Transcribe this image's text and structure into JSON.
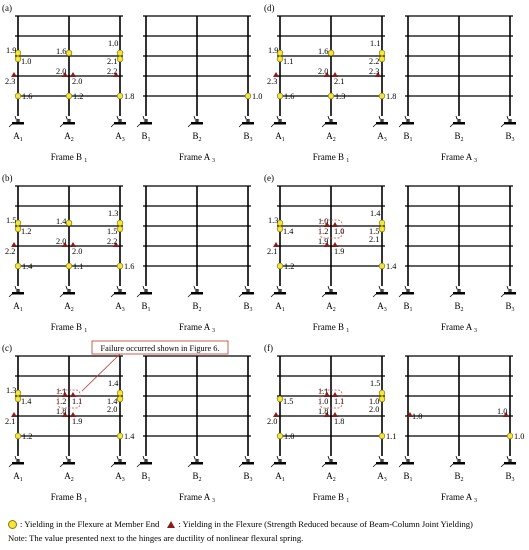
{
  "panels": [
    {
      "label": "(a)",
      "frameB_name": "Frame B",
      "frameB_sub": "1",
      "frameA_name": "Frame A",
      "frameA_sub": "3",
      "left_labels": [
        [
          "A",
          "1"
        ],
        [
          "A",
          "2"
        ],
        [
          "A",
          "3"
        ]
      ],
      "right_labels": [
        [
          "B",
          "1"
        ],
        [
          "B",
          "2"
        ],
        [
          "B",
          "3"
        ]
      ],
      "left_hinges": [
        {
          "col": 0,
          "floor": 2,
          "kind": "circle",
          "value": "1.9",
          "side": "left"
        },
        {
          "col": 0,
          "floor": 2,
          "kind": "circle",
          "value": "1.0",
          "side": "br"
        },
        {
          "col": 1,
          "floor": 2,
          "kind": "circle",
          "value": "1.6",
          "side": "tl"
        },
        {
          "col": 1,
          "floor": 2,
          "kind": "circle",
          "value": "",
          "side": ""
        },
        {
          "col": 2,
          "floor": 2,
          "kind": "circle",
          "value": "1.0",
          "side": "tl2"
        },
        {
          "col": 2,
          "floor": 2,
          "kind": "circle",
          "value": "2.1",
          "side": "bl"
        },
        {
          "col": 1,
          "floor": 1,
          "kind": "tri",
          "value": "2.0",
          "side": "tl"
        },
        {
          "col": 2,
          "floor": 1,
          "kind": "tri",
          "value": "2.2",
          "side": "tl"
        },
        {
          "col": 0,
          "floor": 1,
          "kind": "tri",
          "value": "2.3",
          "side": "bl"
        },
        {
          "col": 1,
          "floor": 1,
          "kind": "tri2",
          "value": "2.0",
          "side": "br"
        },
        {
          "col": 0,
          "floor": 0,
          "kind": "circle",
          "value": "1.6",
          "side": "r"
        },
        {
          "col": 1,
          "floor": 0,
          "kind": "circle",
          "value": "1.2",
          "side": "r"
        },
        {
          "col": 2,
          "floor": 0,
          "kind": "circle",
          "value": "1.8",
          "side": "r"
        }
      ],
      "right_hinges": [
        {
          "col": 2,
          "floor": 0,
          "kind": "circle",
          "value": "1.0",
          "side": "r"
        }
      ]
    },
    {
      "label": "(b)",
      "frameB_name": "Frame B",
      "frameB_sub": "1",
      "frameA_name": "Frame A",
      "frameA_sub": "3",
      "left_labels": [
        [
          "A",
          "1"
        ],
        [
          "A",
          "2"
        ],
        [
          "A",
          "3"
        ]
      ],
      "right_labels": [
        [
          "B",
          "1"
        ],
        [
          "B",
          "2"
        ],
        [
          "B",
          "3"
        ]
      ],
      "left_hinges": [
        {
          "col": 0,
          "floor": 2,
          "kind": "circle",
          "value": "1.5",
          "side": "left"
        },
        {
          "col": 0,
          "floor": 2,
          "kind": "circle",
          "value": "1.2",
          "side": "br"
        },
        {
          "col": 1,
          "floor": 2,
          "kind": "circle",
          "value": "1.4",
          "side": "tl"
        },
        {
          "col": 1,
          "floor": 2,
          "kind": "circle",
          "value": "",
          "side": ""
        },
        {
          "col": 2,
          "floor": 2,
          "kind": "circle",
          "value": "1.3",
          "side": "tl2"
        },
        {
          "col": 2,
          "floor": 2,
          "kind": "circle",
          "value": "1.5",
          "side": "bl"
        },
        {
          "col": 1,
          "floor": 1,
          "kind": "tri",
          "value": "2.0",
          "side": "tl"
        },
        {
          "col": 2,
          "floor": 1,
          "kind": "tri",
          "value": "2.2",
          "side": "tl"
        },
        {
          "col": 0,
          "floor": 1,
          "kind": "tri",
          "value": "2.2",
          "side": "bl"
        },
        {
          "col": 1,
          "floor": 1,
          "kind": "tri2",
          "value": "2.0",
          "side": "br"
        },
        {
          "col": 0,
          "floor": 0,
          "kind": "circle",
          "value": "1.4",
          "side": "r"
        },
        {
          "col": 1,
          "floor": 0,
          "kind": "circle",
          "value": "1.1",
          "side": "r"
        },
        {
          "col": 2,
          "floor": 0,
          "kind": "circle",
          "value": "1.6",
          "side": "r"
        }
      ],
      "right_hinges": []
    },
    {
      "label": "(c)",
      "frameB_name": "Frame B",
      "frameB_sub": "1",
      "frameA_name": "Frame A",
      "frameA_sub": "3",
      "left_labels": [
        [
          "A",
          "1"
        ],
        [
          "A",
          "2"
        ],
        [
          "A",
          "3"
        ]
      ],
      "right_labels": [
        [
          "B",
          "1"
        ],
        [
          "B",
          "2"
        ],
        [
          "B",
          "3"
        ]
      ],
      "left_hinges": [
        {
          "col": 0,
          "floor": 2,
          "kind": "circle",
          "value": "1.3",
          "side": "left"
        },
        {
          "col": 0,
          "floor": 2,
          "kind": "circle",
          "value": "1.4",
          "side": "br"
        },
        {
          "col": 1,
          "floor": 2,
          "kind": "tri",
          "value": "1.1",
          "side": "tl"
        },
        {
          "col": 1,
          "floor": 2,
          "kind": "tri2",
          "value": "1.2",
          "side": "bl"
        },
        {
          "col": 1,
          "floor": 2,
          "kind": "tri",
          "value": "1.1",
          "side": "br"
        },
        {
          "col": 2,
          "floor": 2,
          "kind": "circle",
          "value": "1.4",
          "side": "tl2"
        },
        {
          "col": 2,
          "floor": 2,
          "kind": "circle",
          "value": "1.4",
          "side": "bl"
        },
        {
          "col": 2,
          "floor": 2,
          "kind": "circle",
          "value": "2.0",
          "side": "bl2"
        },
        {
          "col": 0,
          "floor": 1,
          "kind": "tri",
          "value": "2.1",
          "side": "bl"
        },
        {
          "col": 1,
          "floor": 1,
          "kind": "tri",
          "value": "1.8",
          "side": "tl"
        },
        {
          "col": 1,
          "floor": 1,
          "kind": "tri2",
          "value": "1.9",
          "side": "br"
        },
        {
          "col": 0,
          "floor": 0,
          "kind": "circle",
          "value": "1.2",
          "side": "r"
        },
        {
          "col": 2,
          "floor": 0,
          "kind": "circle",
          "value": "1.4",
          "side": "r"
        }
      ],
      "right_hinges": [],
      "dashed_box": true
    },
    {
      "label": "(d)",
      "frameB_name": "Frame B",
      "frameB_sub": "1",
      "frameA_name": "Frame A",
      "frameA_sub": "3",
      "left_labels": [
        [
          "A",
          "1"
        ],
        [
          "A",
          "2"
        ],
        [
          "A",
          "3"
        ]
      ],
      "right_labels": [
        [
          "B",
          "1"
        ],
        [
          "B",
          "2"
        ],
        [
          "B",
          "3"
        ]
      ],
      "left_hinges": [
        {
          "col": 0,
          "floor": 2,
          "kind": "circle",
          "value": "1.9",
          "side": "left"
        },
        {
          "col": 0,
          "floor": 2,
          "kind": "circle",
          "value": "1.1",
          "side": "br"
        },
        {
          "col": 1,
          "floor": 2,
          "kind": "circle",
          "value": "1.6",
          "side": "tl"
        },
        {
          "col": 1,
          "floor": 2,
          "kind": "circle",
          "value": "",
          "side": ""
        },
        {
          "col": 2,
          "floor": 2,
          "kind": "circle",
          "value": "1.1",
          "side": "tl2"
        },
        {
          "col": 2,
          "floor": 2,
          "kind": "circle",
          "value": "2.2",
          "side": "bl"
        },
        {
          "col": 1,
          "floor": 1,
          "kind": "tri",
          "value": "2.0",
          "side": "tl"
        },
        {
          "col": 2,
          "floor": 1,
          "kind": "tri",
          "value": "2.3",
          "side": "tl"
        },
        {
          "col": 0,
          "floor": 1,
          "kind": "tri",
          "value": "2.3",
          "side": "bl"
        },
        {
          "col": 1,
          "floor": 1,
          "kind": "tri2",
          "value": "2.1",
          "side": "br"
        },
        {
          "col": 0,
          "floor": 0,
          "kind": "circle",
          "value": "1.6",
          "side": "r"
        },
        {
          "col": 1,
          "floor": 0,
          "kind": "circle",
          "value": "1.3",
          "side": "r"
        },
        {
          "col": 2,
          "floor": 0,
          "kind": "circle",
          "value": "1.8",
          "side": "r"
        }
      ],
      "right_hinges": []
    },
    {
      "label": "(e)",
      "frameB_name": "Frame B",
      "frameB_sub": "1",
      "frameA_name": "Frame A",
      "frameA_sub": "3",
      "left_labels": [
        [
          "A",
          "1"
        ],
        [
          "A",
          "2"
        ],
        [
          "A",
          "3"
        ]
      ],
      "right_labels": [
        [
          "B",
          "1"
        ],
        [
          "B",
          "2"
        ],
        [
          "B",
          "3"
        ]
      ],
      "left_hinges": [
        {
          "col": 0,
          "floor": 2,
          "kind": "circle",
          "value": "1.3",
          "side": "left"
        },
        {
          "col": 0,
          "floor": 2,
          "kind": "circle",
          "value": "1.4",
          "side": "br"
        },
        {
          "col": 1,
          "floor": 2,
          "kind": "tri",
          "value": "1.0",
          "side": "tl"
        },
        {
          "col": 1,
          "floor": 2,
          "kind": "tri2",
          "value": "1.2",
          "side": "bl"
        },
        {
          "col": 1,
          "floor": 2,
          "kind": "tri",
          "value": "1.0",
          "side": "br"
        },
        {
          "col": 2,
          "floor": 2,
          "kind": "circle",
          "value": "1.4",
          "side": "tl2"
        },
        {
          "col": 2,
          "floor": 2,
          "kind": "circle",
          "value": "1.5",
          "side": "bl"
        },
        {
          "col": 2,
          "floor": 2,
          "kind": "circle",
          "value": "2.1",
          "side": "bl2"
        },
        {
          "col": 0,
          "floor": 1,
          "kind": "tri",
          "value": "2.1",
          "side": "bl"
        },
        {
          "col": 1,
          "floor": 1,
          "kind": "tri",
          "value": "1.9",
          "side": "tl"
        },
        {
          "col": 1,
          "floor": 1,
          "kind": "tri2",
          "value": "1.9",
          "side": "br"
        },
        {
          "col": 0,
          "floor": 0,
          "kind": "circle",
          "value": "1.2",
          "side": "r"
        },
        {
          "col": 2,
          "floor": 0,
          "kind": "circle",
          "value": "1.4",
          "side": "r"
        }
      ],
      "right_hinges": [],
      "dashed_box": true
    },
    {
      "label": "(f)",
      "frameB_name": "Frame B",
      "frameB_sub": "1",
      "frameA_name": "Frame A",
      "frameA_sub": "3",
      "left_labels": [
        [
          "A",
          "1"
        ],
        [
          "A",
          "2"
        ],
        [
          "A",
          "3"
        ]
      ],
      "right_labels": [
        [
          "B",
          "1"
        ],
        [
          "B",
          "2"
        ],
        [
          "B",
          "3"
        ]
      ],
      "left_hinges": [
        {
          "col": 0,
          "floor": 2,
          "kind": "circle",
          "value": "1.5",
          "side": "br"
        },
        {
          "col": 1,
          "floor": 2,
          "kind": "tri",
          "value": "1.1",
          "side": "tl"
        },
        {
          "col": 1,
          "floor": 2,
          "kind": "tri2",
          "value": "1.0",
          "side": "bl"
        },
        {
          "col": 1,
          "floor": 2,
          "kind": "tri",
          "value": "1.1",
          "side": "br"
        },
        {
          "col": 2,
          "floor": 2,
          "kind": "circle",
          "value": "1.5",
          "side": "tl2"
        },
        {
          "col": 2,
          "floor": 2,
          "kind": "circle",
          "value": "1.0",
          "side": "bl"
        },
        {
          "col": 2,
          "floor": 2,
          "kind": "circle",
          "value": "2.0",
          "side": "bl2"
        },
        {
          "col": 0,
          "floor": 1,
          "kind": "tri",
          "value": "2.0",
          "side": "bl"
        },
        {
          "col": 1,
          "floor": 1,
          "kind": "tri",
          "value": "1.8",
          "side": "tl"
        },
        {
          "col": 1,
          "floor": 1,
          "kind": "tri2",
          "value": "1.8",
          "side": "br"
        },
        {
          "col": 0,
          "floor": 0,
          "kind": "circle",
          "value": "1.0",
          "side": "r"
        },
        {
          "col": 2,
          "floor": 0,
          "kind": "circle",
          "value": "1.1",
          "side": "r"
        }
      ],
      "right_hinges": [
        {
          "col": 0,
          "floor": 1,
          "kind": "tri",
          "value": "1.0",
          "side": "r"
        },
        {
          "col": 2,
          "floor": 1,
          "kind": "tri",
          "value": "1.0",
          "side": "tl"
        },
        {
          "col": 2,
          "floor": 0,
          "kind": "circle",
          "value": "1.0",
          "side": "r"
        }
      ],
      "dashed_box": true
    }
  ],
  "callout": "Failure occurred shown in Figure 6.",
  "legend": {
    "circle_text": ": Yielding in the Flexure at Member End",
    "triangle_text": ": Yielding in the Flexure (Strength Reduced because of  Beam-Column Joint Yielding)",
    "note": "Note: The value presented next to the hinges are ductility of nonlinear flexural spring."
  },
  "colors": {
    "circle_fill": "#f2e640",
    "triangle_fill": "#8b1a1a",
    "dash": "#d9473a",
    "line": "#000000"
  }
}
